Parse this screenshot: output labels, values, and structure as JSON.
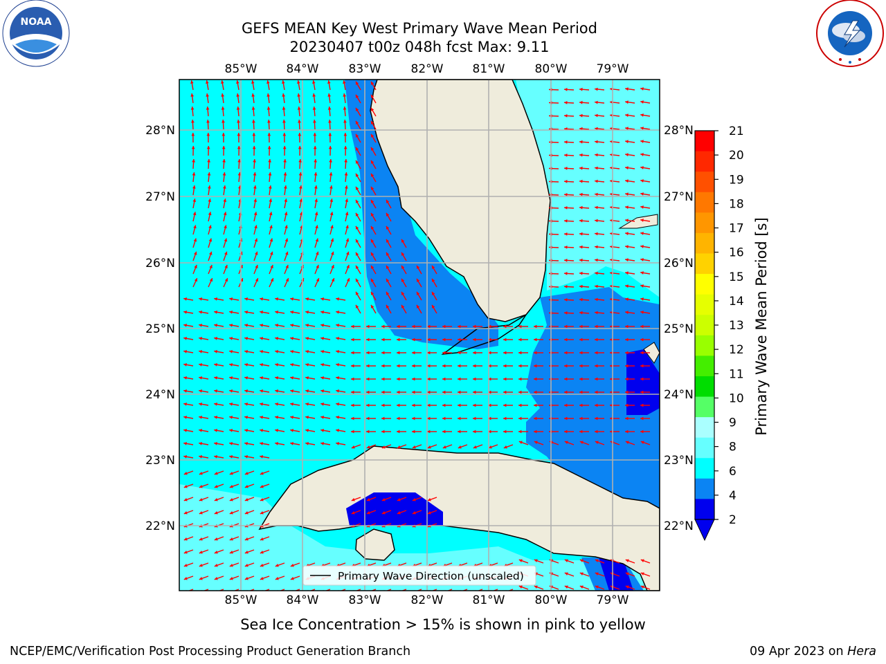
{
  "header": {
    "title_line1": "GEFS MEAN Key West Primary Wave Mean Period",
    "title_line2": "20230407 t00z 048h fcst   Max: 9.11"
  },
  "logos": {
    "left": {
      "text": "NOAA",
      "ring_text": "NATIONAL OCEANIC AND ATMOSPHERIC ADMINISTRATION · U.S. DEPARTMENT OF COMMERCE"
    },
    "right": {
      "ring_text": "NATIONAL WEATHER SERVICE"
    }
  },
  "map": {
    "lon_labels": [
      "85°W",
      "84°W",
      "83°W",
      "82°W",
      "81°W",
      "80°W",
      "79°W"
    ],
    "lat_labels": [
      "28°N",
      "27°N",
      "26°N",
      "25°N",
      "24°N",
      "23°N",
      "22°N"
    ],
    "legend_text": "Primary Wave Direction (unscaled)",
    "colors": {
      "land": "#efecdc",
      "ocean_cyan": "#00ffff",
      "ocean_lightcyan": "#66ffff",
      "ocean_blue": "#0b84f3",
      "ocean_darkblue": "#0000ee",
      "arrow": "#ff0000",
      "grid": "#b0b0b0"
    }
  },
  "colorbar": {
    "label": "Primary Wave Mean Period [s]",
    "ticks": [
      "21",
      "20",
      "19",
      "18",
      "17",
      "16",
      "15",
      "14",
      "13",
      "12",
      "11",
      "10",
      "9",
      "8",
      "6",
      "4",
      "2"
    ],
    "colors": [
      "#ff0000",
      "#ff2800",
      "#ff5000",
      "#ff7800",
      "#ff9600",
      "#ffb400",
      "#ffd200",
      "#ffff00",
      "#e6ff00",
      "#ccff00",
      "#99ff00",
      "#44ee00",
      "#00dd00",
      "#55ff66",
      "#aaffff",
      "#66ffff",
      "#00ffff",
      "#0b84f3",
      "#0000ee"
    ]
  },
  "notes": {
    "sea_ice": "Sea Ice Concentration > 15% is shown in pink to yellow",
    "footer_left": "NCEP/EMC/Verification Post Processing Product Generation Branch",
    "footer_date": "09 Apr 2023 on ",
    "footer_host": "Hera"
  }
}
